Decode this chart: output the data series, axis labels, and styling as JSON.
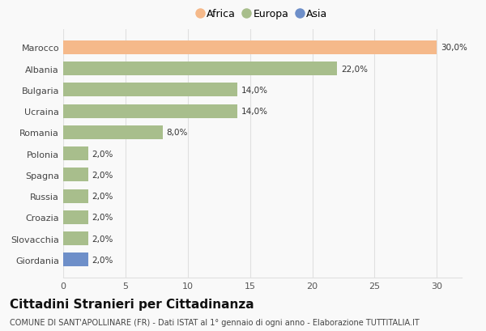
{
  "categories": [
    "Giordania",
    "Slovacchia",
    "Croazia",
    "Russia",
    "Spagna",
    "Polonia",
    "Romania",
    "Ucraina",
    "Bulgaria",
    "Albania",
    "Marocco"
  ],
  "values": [
    2.0,
    2.0,
    2.0,
    2.0,
    2.0,
    2.0,
    8.0,
    14.0,
    14.0,
    22.0,
    30.0
  ],
  "colors": [
    "#6e8fc9",
    "#a8be8c",
    "#a8be8c",
    "#a8be8c",
    "#a8be8c",
    "#a8be8c",
    "#a8be8c",
    "#a8be8c",
    "#a8be8c",
    "#a8be8c",
    "#f5b98a"
  ],
  "labels": [
    "2,0%",
    "2,0%",
    "2,0%",
    "2,0%",
    "2,0%",
    "2,0%",
    "8,0%",
    "14,0%",
    "14,0%",
    "22,0%",
    "30,0%"
  ],
  "xlim": [
    0,
    32
  ],
  "xticks": [
    0,
    5,
    10,
    15,
    20,
    25,
    30
  ],
  "legend": [
    {
      "label": "Africa",
      "color": "#f5b98a"
    },
    {
      "label": "Europa",
      "color": "#a8be8c"
    },
    {
      "label": "Asia",
      "color": "#6e8fc9"
    }
  ],
  "title": "Cittadini Stranieri per Cittadinanza",
  "subtitle": "COMUNE DI SANT'APOLLINARE (FR) - Dati ISTAT al 1° gennaio di ogni anno - Elaborazione TUTTITALIA.IT",
  "background_color": "#f9f9f9",
  "bar_height": 0.65,
  "label_fontsize": 7.5,
  "title_fontsize": 11,
  "subtitle_fontsize": 7,
  "tick_fontsize": 8,
  "category_fontsize": 8,
  "grid_color": "#e0e0e0"
}
